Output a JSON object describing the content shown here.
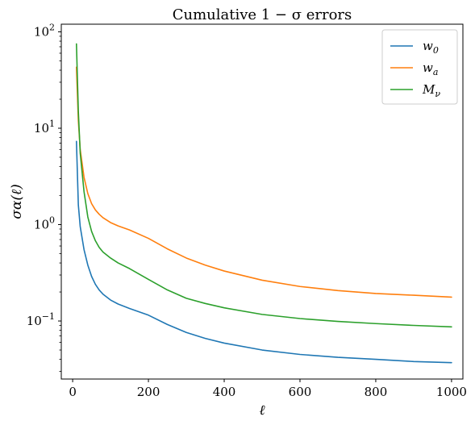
{
  "chart_data": {
    "type": "line",
    "title": "Cumulative 1 − σ errors",
    "xlabel": "ℓ",
    "ylabel": "σα(ℓ)",
    "xlim": [
      -30,
      1030
    ],
    "ylim": [
      0.025,
      120
    ],
    "yscale": "log",
    "grid": false,
    "legend_position": "top-right",
    "x_ticks": [
      0,
      200,
      400,
      600,
      800,
      1000
    ],
    "y_ticks": [
      {
        "value": 0.1,
        "base": "10",
        "exp": "−1"
      },
      {
        "value": 1,
        "base": "10",
        "exp": "0"
      },
      {
        "value": 10,
        "base": "10",
        "exp": "1"
      },
      {
        "value": 100,
        "base": "10",
        "exp": "2"
      }
    ],
    "x": [
      10,
      15,
      20,
      30,
      40,
      50,
      60,
      70,
      80,
      100,
      120,
      150,
      200,
      250,
      300,
      350,
      400,
      500,
      600,
      700,
      800,
      900,
      1000
    ],
    "series": [
      {
        "name": "w",
        "sub": "0",
        "color": "#1f77b4",
        "values": [
          7.3,
          1.6,
          0.95,
          0.55,
          0.38,
          0.29,
          0.24,
          0.21,
          0.19,
          0.165,
          0.15,
          0.135,
          0.115,
          0.092,
          0.076,
          0.066,
          0.059,
          0.05,
          0.045,
          0.042,
          0.04,
          0.038,
          0.037
        ]
      },
      {
        "name": "w",
        "sub": "a",
        "color": "#ff7f0e",
        "values": [
          43,
          12,
          6,
          3.1,
          2.1,
          1.65,
          1.42,
          1.28,
          1.18,
          1.05,
          0.97,
          0.88,
          0.72,
          0.56,
          0.45,
          0.38,
          0.33,
          0.265,
          0.228,
          0.207,
          0.193,
          0.185,
          0.177
        ]
      },
      {
        "name": "M",
        "sub": "ν",
        "color": "#2ca02c",
        "values": [
          75,
          15,
          5.5,
          2.2,
          1.2,
          0.85,
          0.68,
          0.58,
          0.52,
          0.45,
          0.4,
          0.35,
          0.27,
          0.21,
          0.172,
          0.152,
          0.137,
          0.117,
          0.106,
          0.099,
          0.094,
          0.09,
          0.087
        ]
      }
    ]
  }
}
